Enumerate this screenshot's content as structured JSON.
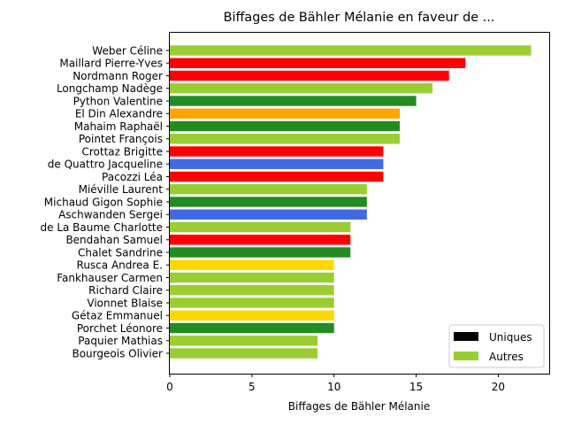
{
  "chart_data": {
    "type": "bar",
    "orientation": "horizontal",
    "title": "Biffages de Bähler Mélanie en faveur de ...",
    "xlabel": "Biffages de Bähler Mélanie",
    "ylabel": "",
    "xlim": [
      0,
      23.1
    ],
    "xticks": [
      0,
      5,
      10,
      15,
      20
    ],
    "categories": [
      "Weber Céline",
      "Maillard Pierre-Yves",
      "Nordmann Roger",
      "Longchamp Nadège",
      "Python Valentine",
      "El Din Alexandre",
      "Mahaim Raphaël",
      "Pointet François",
      "Crottaz Brigitte",
      "de Quattro Jacqueline",
      "Pacozzi Léa",
      "Miéville Laurent",
      "Michaud Gigon Sophie",
      "Aschwanden Sergei",
      "de La Baume Charlotte",
      "Bendahan Samuel",
      "Chalet Sandrine",
      "Rusca Andrea E.",
      "Fankhauser Carmen",
      "Richard Claire",
      "Vionnet Blaise",
      "Gétaz Emmanuel",
      "Porchet Léonore",
      "Paquier Mathias",
      "Bourgeois Olivier"
    ],
    "values": [
      22,
      18,
      17,
      16,
      15,
      14,
      14,
      14,
      13,
      13,
      13,
      12,
      12,
      12,
      11,
      11,
      11,
      10,
      10,
      10,
      10,
      10,
      10,
      9,
      9
    ],
    "colors": [
      "#9acd32",
      "#ff0000",
      "#ff0000",
      "#9acd32",
      "#228b22",
      "#ffa500",
      "#228b22",
      "#9acd32",
      "#ff0000",
      "#4169e1",
      "#ff0000",
      "#9acd32",
      "#228b22",
      "#4169e1",
      "#9acd32",
      "#ff0000",
      "#228b22",
      "#ffd700",
      "#9acd32",
      "#9acd32",
      "#9acd32",
      "#ffd700",
      "#228b22",
      "#9acd32",
      "#9acd32"
    ],
    "legend": {
      "placement": "lower-right",
      "entries": [
        {
          "label": "Uniques",
          "color": "#000000"
        },
        {
          "label": "Autres",
          "color": "#9acd32"
        }
      ]
    },
    "grid": false
  }
}
